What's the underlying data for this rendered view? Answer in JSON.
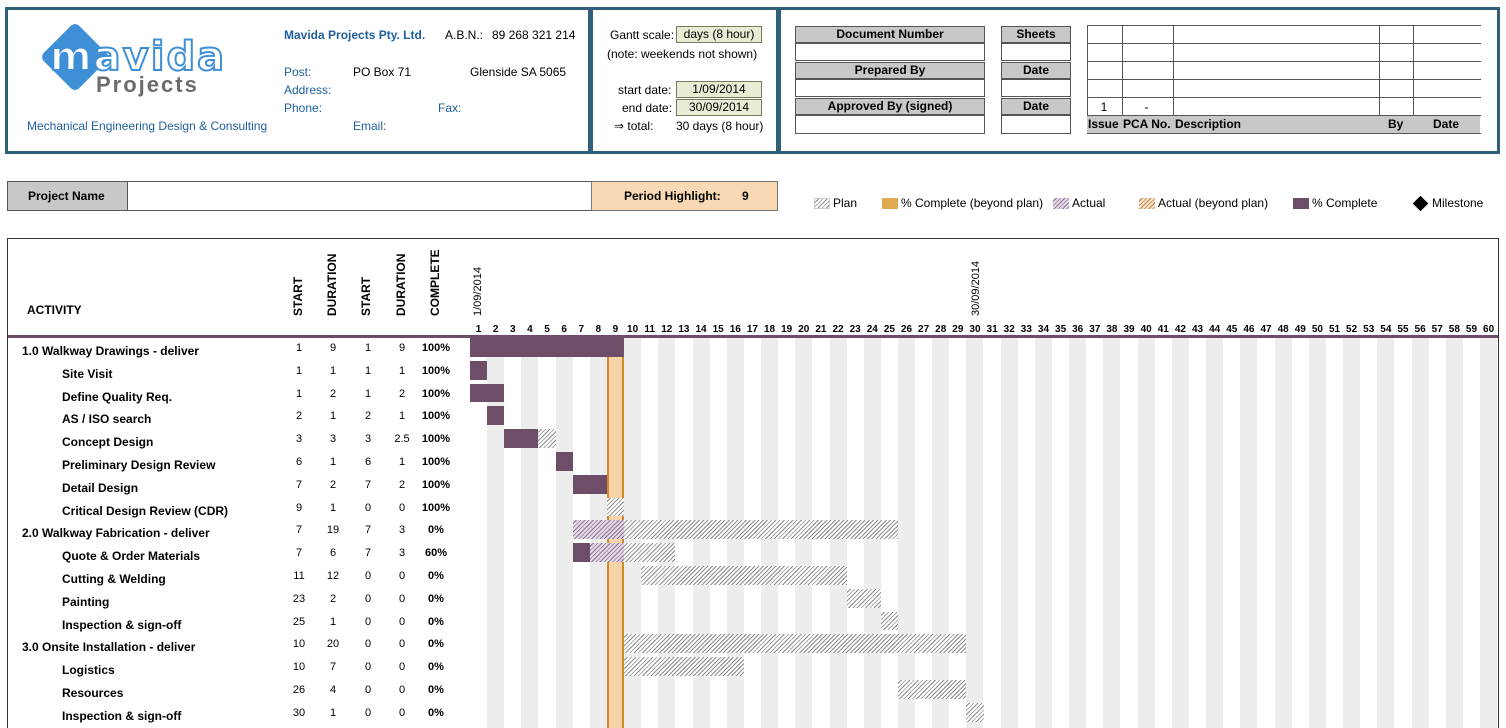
{
  "company": {
    "logo_line1": "mavida",
    "logo_line2": "Projects",
    "name": "Mavida Projects Pty. Ltd.",
    "abn_label": "A.B.N.:",
    "abn": "89 268 321 214",
    "post_label": "Post:",
    "post": "PO Box 71",
    "suburb": "Glenside SA 5065",
    "address_label": "Address:",
    "phone_label": "Phone:",
    "fax_label": "Fax:",
    "email_label": "Email:",
    "tagline": "Mechanical Engineering Design & Consulting"
  },
  "scale": {
    "gantt_scale_label": "Gantt scale:",
    "gantt_scale_value": "days (8 hour)",
    "note": "(note: weekends not shown)",
    "start_label": "start date:",
    "start_value": "1/09/2014",
    "end_label": "end date:",
    "end_value": "30/09/2014",
    "total_label": "⇒ total:",
    "total_value": "30  days (8 hour)"
  },
  "doc": {
    "document_number": "Document Number",
    "sheets": "Sheets",
    "prepared_by": "Prepared By",
    "date1": "Date",
    "approved_by": "Approved By (signed)",
    "date2": "Date",
    "rev_issue_value": "1",
    "rev_pca_value": "-",
    "rev_headers": [
      "Issue",
      "PCA No.",
      "Description",
      "By",
      "Date"
    ]
  },
  "project": {
    "name_label": "Project Name",
    "period_label": "Period Highlight:",
    "period_value": "9"
  },
  "legend": {
    "plan": "Plan",
    "pc_beyond": "% Complete (beyond plan)",
    "actual": "Actual",
    "actual_beyond": "Actual (beyond plan)",
    "pc": "% Complete",
    "milestone": "Milestone"
  },
  "columns": {
    "activity": "ACTIVITY",
    "plan_start": "START",
    "plan_duration": "DURATION",
    "actual_start": "START",
    "actual_duration": "DURATION",
    "complete": "COMPLETE",
    "start_date": "1/09/2014",
    "end_date": "30/09/2014"
  },
  "days": [
    "1",
    "2",
    "3",
    "4",
    "5",
    "6",
    "7",
    "8",
    "9",
    "10",
    "11",
    "12",
    "13",
    "14",
    "15",
    "16",
    "17",
    "18",
    "19",
    "20",
    "21",
    "22",
    "23",
    "24",
    "25",
    "26",
    "27",
    "28",
    "29",
    "30",
    "31",
    "32",
    "33",
    "34",
    "35",
    "36",
    "37",
    "38",
    "39",
    "40",
    "41",
    "42",
    "43",
    "44",
    "45",
    "46",
    "47",
    "48",
    "49",
    "50",
    "51",
    "52",
    "53",
    "54",
    "55",
    "56",
    "57",
    "58",
    "59",
    "60"
  ],
  "period_highlight_day": 9,
  "activities": [
    {
      "name": "1.0 Walkway Drawings - deliver",
      "indent": false,
      "ps": "1",
      "pd": "9",
      "as": "1",
      "ad": "9",
      "pct": "100%"
    },
    {
      "name": "Site Visit",
      "indent": true,
      "ps": "1",
      "pd": "1",
      "as": "1",
      "ad": "1",
      "pct": "100%"
    },
    {
      "name": "Define Quality Req.",
      "indent": true,
      "ps": "1",
      "pd": "2",
      "as": "1",
      "ad": "2",
      "pct": "100%"
    },
    {
      "name": "AS / ISO search",
      "indent": true,
      "ps": "2",
      "pd": "1",
      "as": "2",
      "ad": "1",
      "pct": "100%"
    },
    {
      "name": "Concept Design",
      "indent": true,
      "ps": "3",
      "pd": "3",
      "as": "3",
      "ad": "2.5",
      "pct": "100%"
    },
    {
      "name": "Preliminary Design Review",
      "indent": true,
      "ps": "6",
      "pd": "1",
      "as": "6",
      "ad": "1",
      "pct": "100%"
    },
    {
      "name": "Detail Design",
      "indent": true,
      "ps": "7",
      "pd": "2",
      "as": "7",
      "ad": "2",
      "pct": "100%"
    },
    {
      "name": "Critical Design Review (CDR)",
      "indent": true,
      "ps": "9",
      "pd": "1",
      "as": "0",
      "ad": "0",
      "pct": "100%"
    },
    {
      "name": "2.0 Walkway Fabrication - deliver",
      "indent": false,
      "ps": "7",
      "pd": "19",
      "as": "7",
      "ad": "3",
      "pct": "0%"
    },
    {
      "name": "Quote & Order Materials",
      "indent": true,
      "ps": "7",
      "pd": "6",
      "as": "7",
      "ad": "3",
      "pct": "60%"
    },
    {
      "name": "Cutting & Welding",
      "indent": true,
      "ps": "11",
      "pd": "12",
      "as": "0",
      "ad": "0",
      "pct": "0%"
    },
    {
      "name": "Painting",
      "indent": true,
      "ps": "23",
      "pd": "2",
      "as": "0",
      "ad": "0",
      "pct": "0%"
    },
    {
      "name": "Inspection & sign-off",
      "indent": true,
      "ps": "25",
      "pd": "1",
      "as": "0",
      "ad": "0",
      "pct": "0%"
    },
    {
      "name": "3.0 Onsite Installation - deliver",
      "indent": false,
      "ps": "10",
      "pd": "20",
      "as": "0",
      "ad": "0",
      "pct": "0%"
    },
    {
      "name": "Logistics",
      "indent": true,
      "ps": "10",
      "pd": "7",
      "as": "0",
      "ad": "0",
      "pct": "0%"
    },
    {
      "name": "Resources",
      "indent": true,
      "ps": "26",
      "pd": "4",
      "as": "0",
      "ad": "0",
      "pct": "0%"
    },
    {
      "name": "Inspection & sign-off",
      "indent": true,
      "ps": "30",
      "pd": "1",
      "as": "0",
      "ad": "0",
      "pct": "0%"
    }
  ],
  "bars": [
    {
      "row": 0,
      "type": "pc",
      "start": 1,
      "len": 9
    },
    {
      "row": 1,
      "type": "pc",
      "start": 1,
      "len": 1
    },
    {
      "row": 2,
      "type": "pc",
      "start": 1,
      "len": 2
    },
    {
      "row": 3,
      "type": "pc",
      "start": 2,
      "len": 1
    },
    {
      "row": 4,
      "type": "pc",
      "start": 3,
      "len": 2
    },
    {
      "row": 4,
      "type": "plan",
      "start": 5,
      "len": 1
    },
    {
      "row": 5,
      "type": "pc",
      "start": 6,
      "len": 1
    },
    {
      "row": 6,
      "type": "pc",
      "start": 7,
      "len": 2
    },
    {
      "row": 7,
      "type": "plan",
      "start": 9,
      "len": 1
    },
    {
      "row": 8,
      "type": "act",
      "start": 7,
      "len": 3
    },
    {
      "row": 8,
      "type": "plan",
      "start": 10,
      "len": 16
    },
    {
      "row": 9,
      "type": "pc",
      "start": 7,
      "len": 1
    },
    {
      "row": 9,
      "type": "act",
      "start": 8,
      "len": 2
    },
    {
      "row": 9,
      "type": "plan",
      "start": 10,
      "len": 3
    },
    {
      "row": 10,
      "type": "plan",
      "start": 11,
      "len": 12
    },
    {
      "row": 11,
      "type": "plan",
      "start": 23,
      "len": 2
    },
    {
      "row": 12,
      "type": "plan",
      "start": 25,
      "len": 1
    },
    {
      "row": 13,
      "type": "plan",
      "start": 10,
      "len": 20
    },
    {
      "row": 14,
      "type": "plan",
      "start": 10,
      "len": 7
    },
    {
      "row": 15,
      "type": "plan",
      "start": 26,
      "len": 4
    },
    {
      "row": 16,
      "type": "plan",
      "start": 30,
      "len": 1
    }
  ]
}
